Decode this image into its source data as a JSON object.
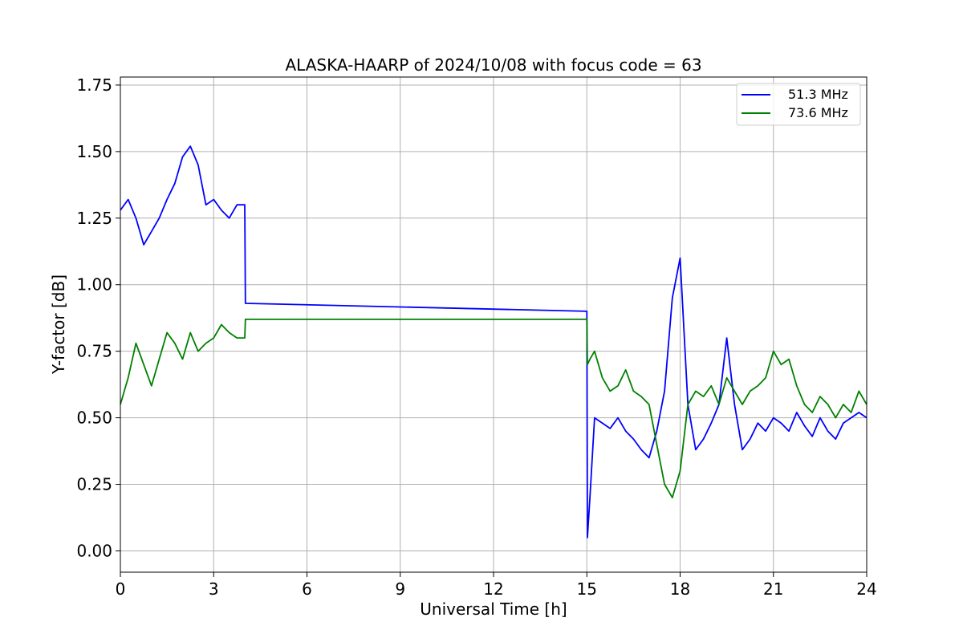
{
  "chart_data": {
    "type": "line",
    "title": "ALASKA-HAARP of 2024/10/08 with focus code = 63",
    "xlabel": "Universal Time [h]",
    "ylabel": "Y-factor [dB]",
    "xlim": [
      0,
      24
    ],
    "ylim": [
      -0.08,
      1.78
    ],
    "grid": true,
    "legend_position": "top-right",
    "x_ticks": [
      0,
      3,
      6,
      9,
      12,
      15,
      18,
      21,
      24
    ],
    "x_tick_labels": [
      "0",
      "3",
      "6",
      "9",
      "12",
      "15",
      "18",
      "21",
      "24"
    ],
    "y_ticks": [
      0.0,
      0.25,
      0.5,
      0.75,
      1.0,
      1.25,
      1.5,
      1.75
    ],
    "y_tick_labels": [
      "0.00",
      "0.25",
      "0.50",
      "0.75",
      "1.00",
      "1.25",
      "1.50",
      "1.75"
    ],
    "series": [
      {
        "name": "51.3 MHz",
        "color": "#0000ff",
        "x": [
          0,
          0.25,
          0.5,
          0.75,
          1.0,
          1.25,
          1.5,
          1.75,
          2.0,
          2.25,
          2.5,
          2.75,
          3.0,
          3.25,
          3.5,
          3.75,
          4.0,
          4.02,
          15.0,
          15.02,
          15.1,
          15.25,
          15.5,
          15.75,
          16.0,
          16.25,
          16.5,
          16.75,
          17.0,
          17.25,
          17.5,
          17.75,
          18.0,
          18.25,
          18.5,
          18.75,
          19.0,
          19.25,
          19.5,
          19.75,
          20.0,
          20.25,
          20.5,
          20.75,
          21.0,
          21.25,
          21.5,
          21.75,
          22.0,
          22.25,
          22.5,
          22.75,
          23.0,
          23.25,
          23.5,
          23.75,
          24.0
        ],
        "values": [
          1.28,
          1.32,
          1.25,
          1.15,
          1.2,
          1.25,
          1.32,
          1.38,
          1.48,
          1.52,
          1.45,
          1.3,
          1.32,
          1.28,
          1.25,
          1.3,
          1.3,
          0.93,
          0.9,
          0.05,
          0.2,
          0.5,
          0.48,
          0.46,
          0.5,
          0.45,
          0.42,
          0.38,
          0.35,
          0.45,
          0.6,
          0.95,
          1.1,
          0.55,
          0.38,
          0.42,
          0.48,
          0.55,
          0.8,
          0.55,
          0.38,
          0.42,
          0.48,
          0.45,
          0.5,
          0.48,
          0.45,
          0.52,
          0.47,
          0.43,
          0.5,
          0.45,
          0.42,
          0.48,
          0.5,
          0.52,
          0.5
        ]
      },
      {
        "name": "73.6 MHz",
        "color": "#008000",
        "x": [
          0,
          0.25,
          0.5,
          0.75,
          1.0,
          1.25,
          1.5,
          1.75,
          2.0,
          2.25,
          2.5,
          2.75,
          3.0,
          3.25,
          3.5,
          3.75,
          4.0,
          4.02,
          15.0,
          15.02,
          15.1,
          15.25,
          15.5,
          15.75,
          16.0,
          16.25,
          16.5,
          16.75,
          17.0,
          17.25,
          17.5,
          17.75,
          18.0,
          18.25,
          18.5,
          18.75,
          19.0,
          19.25,
          19.5,
          19.75,
          20.0,
          20.25,
          20.5,
          20.75,
          21.0,
          21.25,
          21.5,
          21.75,
          22.0,
          22.25,
          22.5,
          22.75,
          23.0,
          23.25,
          23.5,
          23.75,
          24.0
        ],
        "values": [
          0.55,
          0.65,
          0.78,
          0.7,
          0.62,
          0.72,
          0.82,
          0.78,
          0.72,
          0.82,
          0.75,
          0.78,
          0.8,
          0.85,
          0.82,
          0.8,
          0.8,
          0.87,
          0.87,
          0.7,
          0.72,
          0.75,
          0.65,
          0.6,
          0.62,
          0.68,
          0.6,
          0.58,
          0.55,
          0.4,
          0.25,
          0.2,
          0.3,
          0.55,
          0.6,
          0.58,
          0.62,
          0.55,
          0.65,
          0.6,
          0.55,
          0.6,
          0.62,
          0.65,
          0.75,
          0.7,
          0.72,
          0.62,
          0.55,
          0.52,
          0.58,
          0.55,
          0.5,
          0.55,
          0.52,
          0.6,
          0.55
        ]
      }
    ]
  }
}
